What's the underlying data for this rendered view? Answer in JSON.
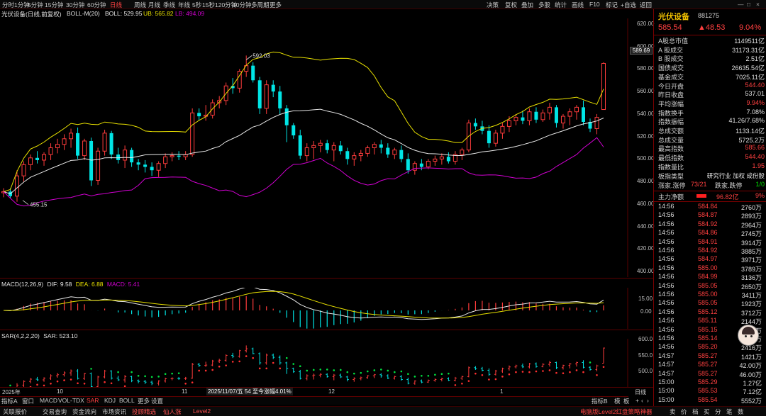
{
  "top_tabs": [
    "分时",
    "1分钟",
    "5分钟",
    "15分钟",
    "30分钟",
    "60分钟",
    "日线",
    "周线",
    "月线",
    "季线",
    "年线",
    "5秒",
    "15秒",
    "120分钟",
    "10分钟",
    "多周期",
    "更多"
  ],
  "active_tab": "日线",
  "toolbar": [
    "决策",
    "复权",
    "叠加",
    "多股",
    "统计",
    "画线",
    "F10",
    "标记",
    "+自选",
    "返回"
  ],
  "stock": {
    "name": "光伏设备",
    "code": "881275",
    "price": "585.54",
    "change": "▲48.53",
    "pct": "9.04%"
  },
  "main_legend": {
    "title": "光伏设备(日线,前复权)",
    "boll": "BOLL-M(20)",
    "boll_val": "BOLL: 529.95",
    "ub": "UB: 565.82",
    "lb": "LB: 494.09"
  },
  "macd_legend": {
    "title": "MACD(12,26,9)",
    "dif": "DIF: 9.58",
    "dea": "DEA: 6.88",
    "macd": "MACD: 5.41"
  },
  "sar_legend": {
    "title": "SAR(4,2,2,20)",
    "val": "SAR: 523.10"
  },
  "main_axis": [
    "620.00",
    "600.00",
    "580.00",
    "560.00",
    "540.00",
    "520.00",
    "500.00",
    "480.00",
    "460.00",
    "440.00",
    "420.00",
    "400.00"
  ],
  "price_marker": "589.69",
  "macd_axis": [
    "15.00",
    "0.00"
  ],
  "sar_axis": [
    "600.0",
    "550.0",
    "500.0"
  ],
  "high_label": "592.03",
  "low_label": "455.15",
  "x_labels": [
    "2025年",
    "10",
    "11",
    "2025/11/07/五 54 至今涨幅4.01%",
    "12",
    "1",
    "日线"
  ],
  "stats": [
    {
      "l": "A股总市值",
      "r": "1149511亿",
      "c": "#e0e0e0"
    },
    {
      "l": "A 股成交",
      "r": "31173.31亿",
      "c": "#e0e0e0"
    },
    {
      "l": "B 股成交",
      "r": "2.51亿",
      "c": "#e0e0e0"
    },
    {
      "l": "国债成交",
      "r": "26635.54亿",
      "c": "#e0e0e0"
    },
    {
      "l": "基金成交",
      "r": "7025.11亿",
      "c": "#e0e0e0"
    },
    {
      "l": "今日开盘",
      "r": "544.40",
      "c": "#ff4040"
    },
    {
      "l": "昨日收盘",
      "r": "537.01",
      "c": "#e0e0e0"
    },
    {
      "l": "平均涨幅",
      "r": "9.94%",
      "c": "#ff4040"
    },
    {
      "l": "指数换手",
      "r": "7.08%",
      "c": "#e0e0e0"
    },
    {
      "l": "指数振幅",
      "r": "41.26/7.68%",
      "c": "#e0e0e0"
    },
    {
      "l": "总成交额",
      "r": "1133.14亿",
      "c": "#e0e0e0"
    },
    {
      "l": "总成交量",
      "r": "5725.2万",
      "c": "#e0e0e0"
    },
    {
      "l": "最高指数",
      "r": "585.66",
      "c": "#ff4040"
    },
    {
      "l": "最低指数",
      "r": "544.40",
      "c": "#ff4040"
    },
    {
      "l": "指数量比",
      "r": "1.95",
      "c": "#ff4040"
    }
  ],
  "sector": {
    "l": "板指类型",
    "r": "研究行业 加权 成份股"
  },
  "updown": {
    "l1": "涨家.涨停",
    "v1": "73/21",
    "l2": "跌家.跌停",
    "v2": "1/0"
  },
  "netflow": {
    "l": "主力净额",
    "v": "96.82亿",
    "p": "9%"
  },
  "ticks": [
    [
      "14:56",
      "584.84",
      "2760万"
    ],
    [
      "14:56",
      "584.87",
      "2893万"
    ],
    [
      "14:56",
      "584.92",
      "2964万"
    ],
    [
      "14:56",
      "584.86",
      "2745万"
    ],
    [
      "14:56",
      "584.91",
      "3914万"
    ],
    [
      "14:56",
      "584.92",
      "3885万"
    ],
    [
      "14:56",
      "584.97",
      "3971万"
    ],
    [
      "14:56",
      "585.00",
      "3789万"
    ],
    [
      "14:56",
      "584.99",
      "3136万"
    ],
    [
      "14:56",
      "585.05",
      "2650万"
    ],
    [
      "14:56",
      "585.00",
      "3411万"
    ],
    [
      "14:56",
      "585.05",
      "1923万"
    ],
    [
      "14:56",
      "585.12",
      "3712万"
    ],
    [
      "14:56",
      "585.11",
      "2144万"
    ],
    [
      "14:56",
      "585.15",
      "3085万"
    ],
    [
      "14:56",
      "585.14",
      "2982万"
    ],
    [
      "14:56",
      "585.20",
      "2416万"
    ],
    [
      "14:57",
      "585.27",
      "1421万"
    ],
    [
      "14:57",
      "585.27",
      "42.00万"
    ],
    [
      "14:57",
      "585.27",
      "46.00万"
    ],
    [
      "15:00",
      "585.29",
      "1.27亿"
    ],
    [
      "15:00",
      "585.53",
      "7.12亿"
    ],
    [
      "15:00",
      "585.54",
      "5552万"
    ]
  ],
  "indicator_tabs": [
    "指标A",
    "窗口",
    "MACD",
    "VOL-TDX",
    "SAR",
    "KDJ",
    "BOLL",
    "更多",
    "设置"
  ],
  "indicator_right": [
    "指标B",
    "模",
    "板"
  ],
  "bottom_tabs": [
    "关联报价",
    "交易查询",
    "资金流向",
    "市场资讯",
    "投顾精选",
    "仙人涨",
    "Level2"
  ],
  "bottom_right": [
    "电脑版Level2红盘策略神器",
    "卖",
    "价",
    "档",
    "买",
    "分",
    "笔",
    "数"
  ],
  "colors": {
    "up": "#ff3c3c",
    "down": "#00e5e5",
    "ub": "#e8e000",
    "mid": "#e8e8e8",
    "lb": "#d000d0"
  },
  "chart_data": {
    "type": "candlestick",
    "ohlc": [
      [
        470,
        474,
        466,
        471
      ],
      [
        471,
        474,
        465,
        467
      ],
      [
        467,
        490,
        462,
        485
      ],
      [
        485,
        498,
        480,
        495
      ],
      [
        495,
        504,
        490,
        501
      ],
      [
        501,
        507,
        496,
        499
      ],
      [
        499,
        506,
        494,
        504
      ],
      [
        504,
        514,
        499,
        510
      ],
      [
        510,
        518,
        505,
        513
      ],
      [
        513,
        522,
        508,
        518
      ],
      [
        518,
        527,
        510,
        523
      ],
      [
        523,
        528,
        500,
        503
      ],
      [
        503,
        518,
        499,
        516
      ],
      [
        516,
        519,
        476,
        481
      ],
      [
        481,
        510,
        477,
        507
      ],
      [
        507,
        526,
        503,
        523
      ],
      [
        523,
        525,
        500,
        504
      ],
      [
        504,
        510,
        496,
        499
      ],
      [
        499,
        512,
        492,
        508
      ],
      [
        508,
        510,
        493,
        497
      ],
      [
        497,
        500,
        490,
        495
      ],
      [
        495,
        499,
        488,
        493
      ],
      [
        493,
        497,
        485,
        490
      ],
      [
        490,
        498,
        484,
        496
      ],
      [
        496,
        505,
        492,
        502
      ],
      [
        502,
        506,
        498,
        503
      ],
      [
        503,
        507,
        499,
        502
      ],
      [
        502,
        507,
        499,
        504
      ],
      [
        504,
        545,
        502,
        541
      ],
      [
        541,
        545,
        534,
        538
      ],
      [
        538,
        548,
        534,
        539
      ],
      [
        539,
        553,
        536,
        550
      ],
      [
        550,
        556,
        545,
        552
      ],
      [
        552,
        568,
        548,
        565
      ],
      [
        565,
        572,
        558,
        563
      ],
      [
        563,
        580,
        559,
        578
      ],
      [
        578,
        592,
        573,
        583
      ],
      [
        583,
        586,
        568,
        570
      ],
      [
        570,
        573,
        540,
        545
      ],
      [
        545,
        570,
        540,
        566
      ],
      [
        566,
        570,
        555,
        560
      ],
      [
        560,
        565,
        540,
        545
      ],
      [
        545,
        548,
        515,
        530
      ],
      [
        530,
        532,
        518,
        521
      ],
      [
        521,
        526,
        500,
        503
      ],
      [
        503,
        514,
        498,
        510
      ],
      [
        510,
        516,
        500,
        512
      ],
      [
        512,
        517,
        506,
        514
      ],
      [
        514,
        517,
        505,
        508
      ],
      [
        508,
        515,
        498,
        512
      ],
      [
        512,
        516,
        504,
        507
      ],
      [
        507,
        510,
        495,
        500
      ],
      [
        500,
        506,
        494,
        503
      ],
      [
        503,
        508,
        498,
        505
      ],
      [
        505,
        512,
        502,
        510
      ],
      [
        510,
        515,
        504,
        513
      ],
      [
        513,
        517,
        505,
        510
      ],
      [
        510,
        514,
        501,
        504
      ],
      [
        504,
        510,
        500,
        508
      ],
      [
        508,
        512,
        497,
        500
      ],
      [
        500,
        505,
        487,
        490
      ],
      [
        490,
        498,
        486,
        496
      ],
      [
        496,
        500,
        490,
        493
      ],
      [
        493,
        500,
        491,
        498
      ],
      [
        498,
        503,
        494,
        500
      ],
      [
        500,
        505,
        495,
        502
      ],
      [
        502,
        506,
        496,
        498
      ],
      [
        498,
        507,
        495,
        504
      ],
      [
        504,
        510,
        499,
        508
      ],
      [
        508,
        535,
        506,
        532
      ],
      [
        532,
        536,
        526,
        529
      ],
      [
        529,
        534,
        522,
        525
      ],
      [
        525,
        530,
        510,
        514
      ],
      [
        514,
        526,
        511,
        523
      ],
      [
        523,
        532,
        518,
        529
      ],
      [
        529,
        538,
        524,
        534
      ],
      [
        534,
        540,
        530,
        537
      ],
      [
        537,
        543,
        531,
        534
      ],
      [
        534,
        545,
        530,
        542
      ],
      [
        542,
        546,
        532,
        535
      ],
      [
        535,
        544,
        533,
        541
      ],
      [
        541,
        550,
        535,
        546
      ],
      [
        546,
        548,
        528,
        532
      ],
      [
        532,
        540,
        527,
        538
      ],
      [
        538,
        545,
        530,
        542
      ],
      [
        542,
        548,
        535,
        546
      ],
      [
        546,
        552,
        530,
        533
      ],
      [
        533,
        536,
        524,
        527
      ],
      [
        527,
        540,
        522,
        537
      ],
      [
        544,
        586,
        544,
        585
      ]
    ],
    "series_names": [
      "BOLL",
      "UB",
      "LB"
    ],
    "ylim": [
      395,
      625
    ]
  }
}
